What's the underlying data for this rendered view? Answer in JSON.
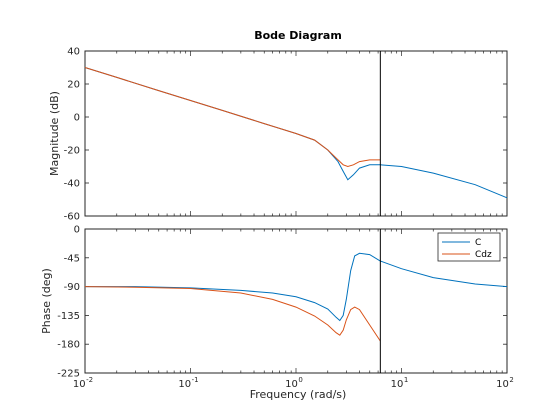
{
  "chart_data": {
    "type": "line",
    "title": "Bode Diagram",
    "xlabel": "Frequency  (rad/s)",
    "xscale": "log",
    "xlim": [
      0.01,
      100
    ],
    "x_ticks": [
      {
        "value": 0.01,
        "base": "10",
        "exp": "-2"
      },
      {
        "value": 0.1,
        "base": "10",
        "exp": "-1"
      },
      {
        "value": 1,
        "base": "10",
        "exp": "0"
      },
      {
        "value": 10,
        "base": "10",
        "exp": "1"
      },
      {
        "value": 100,
        "base": "10",
        "exp": "2"
      }
    ],
    "cursor_x": 6.3,
    "legend": {
      "placement": "top-right",
      "entries": [
        "C",
        "Cdz"
      ]
    },
    "colors": {
      "C": "#0072BD",
      "Cdz": "#D95319",
      "cursor": "#000000",
      "axes": "#262626"
    },
    "magnitude": {
      "ylabel": "Magnitude (dB)",
      "ylim": [
        -60,
        40
      ],
      "yticks": [
        "40",
        "20",
        "0",
        "-20",
        "-40",
        "-60"
      ],
      "series": [
        {
          "name": "C",
          "x": [
            0.01,
            0.02,
            0.05,
            0.1,
            0.2,
            0.5,
            1,
            1.5,
            2,
            2.5,
            2.8,
            3.1,
            3.5,
            4,
            5,
            6.3,
            10,
            20,
            50,
            100
          ],
          "y": [
            30,
            24,
            16,
            10,
            4,
            -4,
            -10,
            -14,
            -20,
            -27,
            -33,
            -38,
            -35,
            -31,
            -29,
            -29,
            -30,
            -34,
            -41,
            -49
          ]
        },
        {
          "name": "Cdz",
          "x": [
            0.01,
            0.02,
            0.05,
            0.1,
            0.2,
            0.5,
            1,
            1.5,
            2,
            2.5,
            2.8,
            3.1,
            3.5,
            4,
            5,
            6.3
          ],
          "y": [
            30,
            24,
            16,
            10,
            4,
            -4,
            -10,
            -14,
            -20,
            -26,
            -29,
            -30,
            -29,
            -27,
            -26,
            -26
          ]
        }
      ]
    },
    "phase": {
      "ylabel": "Phase (deg)",
      "ylim": [
        -225,
        0
      ],
      "yticks": [
        "0",
        "-45",
        "-90",
        "-135",
        "-180",
        "-225"
      ],
      "series": [
        {
          "name": "C",
          "x": [
            0.01,
            0.03,
            0.1,
            0.3,
            0.6,
            1,
            1.5,
            2,
            2.4,
            2.6,
            2.8,
            3,
            3.3,
            3.6,
            4,
            5,
            6.3,
            10,
            20,
            50,
            100
          ],
          "y": [
            -90,
            -90,
            -92,
            -96,
            -100,
            -106,
            -115,
            -125,
            -138,
            -143,
            -135,
            -110,
            -65,
            -42,
            -38,
            -40,
            -50,
            -62,
            -76,
            -86,
            -90
          ]
        },
        {
          "name": "Cdz",
          "x": [
            0.01,
            0.03,
            0.1,
            0.3,
            0.6,
            1,
            1.5,
            2,
            2.4,
            2.6,
            2.8,
            3,
            3.3,
            3.6,
            4,
            5,
            6.3
          ],
          "y": [
            -90,
            -91,
            -93,
            -100,
            -110,
            -122,
            -136,
            -150,
            -162,
            -166,
            -158,
            -142,
            -126,
            -122,
            -126,
            -150,
            -175
          ]
        }
      ]
    }
  }
}
